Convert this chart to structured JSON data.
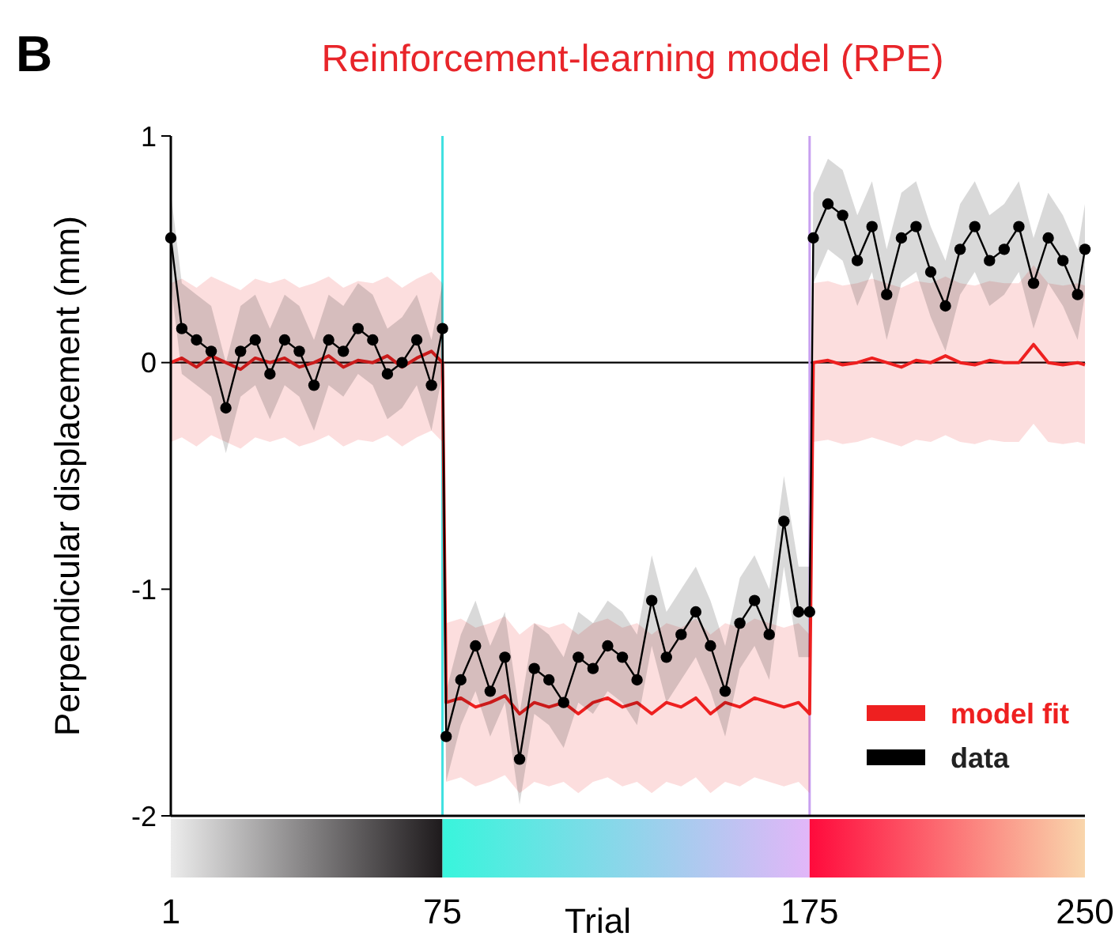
{
  "chart_data": {
    "type": "line",
    "title": "Reinforcement-learning model (RPE)",
    "xlabel": "Trial",
    "ylabel": "Perpendicular displacement (mm)",
    "annotations": [
      "B"
    ],
    "x": [
      1,
      4,
      8,
      12,
      16,
      20,
      24,
      28,
      32,
      36,
      40,
      44,
      48,
      52,
      56,
      60,
      64,
      68,
      72,
      75,
      76,
      80,
      84,
      88,
      92,
      96,
      100,
      104,
      108,
      112,
      116,
      120,
      124,
      128,
      132,
      136,
      140,
      144,
      148,
      152,
      156,
      160,
      164,
      168,
      172,
      175,
      176,
      180,
      184,
      188,
      192,
      196,
      200,
      204,
      208,
      212,
      216,
      220,
      224,
      228,
      232,
      236,
      240,
      244,
      248,
      250
    ],
    "xlim": [
      1,
      250
    ],
    "xticks": [
      1,
      75,
      175,
      250
    ],
    "ylim": [
      -2,
      1
    ],
    "yticks": [
      -2,
      -1,
      0,
      1
    ],
    "grid": false,
    "legend": "bottom right",
    "ref_lines": [
      {
        "axis": "y",
        "value": 0,
        "color": "#000000"
      },
      {
        "axis": "x",
        "value": 75,
        "color": "#40e0e0"
      },
      {
        "axis": "x",
        "value": 175,
        "color": "#c8a0f0"
      }
    ],
    "series": [
      {
        "name": "data",
        "color": "#000000",
        "marker": "circle",
        "values": [
          0.55,
          0.15,
          0.1,
          0.05,
          -0.2,
          0.05,
          0.1,
          -0.05,
          0.1,
          0.05,
          -0.1,
          0.1,
          0.05,
          0.15,
          0.1,
          -0.05,
          0.0,
          0.1,
          -0.1,
          0.15,
          -1.65,
          -1.4,
          -1.25,
          -1.45,
          -1.3,
          -1.75,
          -1.35,
          -1.4,
          -1.5,
          -1.3,
          -1.35,
          -1.25,
          -1.3,
          -1.4,
          -1.05,
          -1.3,
          -1.2,
          -1.1,
          -1.25,
          -1.45,
          -1.15,
          -1.05,
          -1.2,
          -0.7,
          -1.1,
          -1.1,
          0.55,
          0.7,
          0.65,
          0.45,
          0.6,
          0.3,
          0.55,
          0.6,
          0.4,
          0.25,
          0.5,
          0.6,
          0.45,
          0.5,
          0.6,
          0.35,
          0.55,
          0.45,
          0.3,
          0.5
        ],
        "lower": [
          0.35,
          -0.05,
          -0.1,
          -0.15,
          -0.4,
          -0.15,
          -0.1,
          -0.25,
          -0.1,
          -0.15,
          -0.3,
          -0.1,
          -0.15,
          -0.05,
          -0.1,
          -0.25,
          -0.2,
          -0.1,
          -0.3,
          -0.05,
          -1.85,
          -1.6,
          -1.45,
          -1.65,
          -1.5,
          -1.95,
          -1.55,
          -1.6,
          -1.7,
          -1.5,
          -1.55,
          -1.45,
          -1.5,
          -1.6,
          -1.25,
          -1.5,
          -1.4,
          -1.3,
          -1.45,
          -1.65,
          -1.35,
          -1.25,
          -1.4,
          -0.9,
          -1.3,
          -1.3,
          0.35,
          0.5,
          0.45,
          0.25,
          0.4,
          0.1,
          0.35,
          0.4,
          0.2,
          0.05,
          0.3,
          0.4,
          0.25,
          0.3,
          0.4,
          0.15,
          0.35,
          0.25,
          0.1,
          0.3
        ],
        "upper": [
          0.75,
          0.35,
          0.3,
          0.25,
          0,
          0.25,
          0.3,
          0.15,
          0.3,
          0.25,
          0.1,
          0.3,
          0.25,
          0.35,
          0.3,
          0.15,
          0.2,
          0.3,
          0.1,
          0.35,
          -1.45,
          -1.2,
          -1.05,
          -1.25,
          -1.1,
          -1.55,
          -1.15,
          -1.2,
          -1.3,
          -1.1,
          -1.15,
          -1.05,
          -1.1,
          -1.2,
          -0.85,
          -1.1,
          -1.0,
          -0.9,
          -1.05,
          -1.25,
          -0.95,
          -0.85,
          -1.0,
          -0.5,
          -0.9,
          -0.9,
          0.75,
          0.9,
          0.85,
          0.65,
          0.8,
          0.5,
          0.75,
          0.8,
          0.6,
          0.45,
          0.7,
          0.8,
          0.65,
          0.7,
          0.8,
          0.55,
          0.75,
          0.65,
          0.5,
          0.7
        ]
      },
      {
        "name": "model fit",
        "color": "#ee2020",
        "marker": "none",
        "values": [
          0.0,
          0.02,
          -0.02,
          0.03,
          0,
          -0.03,
          0.02,
          0,
          0.02,
          -0.02,
          0,
          0.03,
          -0.02,
          0.01,
          0,
          0.03,
          -0.02,
          0.02,
          0.05,
          0.0,
          -1.5,
          -1.48,
          -1.52,
          -1.5,
          -1.47,
          -1.55,
          -1.5,
          -1.52,
          -1.5,
          -1.55,
          -1.5,
          -1.48,
          -1.52,
          -1.5,
          -1.55,
          -1.5,
          -1.52,
          -1.48,
          -1.55,
          -1.5,
          -1.52,
          -1.48,
          -1.5,
          -1.52,
          -1.5,
          -1.55,
          0,
          0.01,
          -0.01,
          0,
          0.02,
          0,
          -0.02,
          0.01,
          0,
          0.03,
          0,
          -0.01,
          0.01,
          0,
          0,
          0.08,
          0,
          -0.01,
          0,
          -0.01
        ],
        "lower": [
          -0.35,
          -0.33,
          -0.37,
          -0.32,
          -0.35,
          -0.38,
          -0.33,
          -0.35,
          -0.33,
          -0.37,
          -0.35,
          -0.32,
          -0.37,
          -0.34,
          -0.35,
          -0.32,
          -0.37,
          -0.33,
          -0.3,
          -0.35,
          -1.85,
          -1.83,
          -1.87,
          -1.85,
          -1.82,
          -1.9,
          -1.85,
          -1.87,
          -1.85,
          -1.9,
          -1.85,
          -1.83,
          -1.87,
          -1.85,
          -1.9,
          -1.85,
          -1.87,
          -1.83,
          -1.9,
          -1.85,
          -1.87,
          -1.83,
          -1.85,
          -1.87,
          -1.85,
          -1.9,
          -0.35,
          -0.34,
          -0.36,
          -0.35,
          -0.33,
          -0.35,
          -0.37,
          -0.34,
          -0.35,
          -0.32,
          -0.35,
          -0.36,
          -0.34,
          -0.35,
          -0.35,
          -0.27,
          -0.35,
          -0.36,
          -0.35,
          -0.36
        ],
        "upper": [
          0.35,
          0.37,
          0.33,
          0.38,
          0.35,
          0.32,
          0.37,
          0.35,
          0.37,
          0.33,
          0.35,
          0.38,
          0.33,
          0.36,
          0.35,
          0.38,
          0.33,
          0.37,
          0.4,
          0.35,
          -1.15,
          -1.13,
          -1.17,
          -1.15,
          -1.12,
          -1.2,
          -1.15,
          -1.17,
          -1.15,
          -1.2,
          -1.15,
          -1.13,
          -1.17,
          -1.15,
          -1.2,
          -1.15,
          -1.17,
          -1.13,
          -1.2,
          -1.15,
          -1.17,
          -1.13,
          -1.15,
          -1.17,
          -1.15,
          -1.2,
          0.35,
          0.36,
          0.34,
          0.35,
          0.37,
          0.35,
          0.33,
          0.36,
          0.35,
          0.38,
          0.35,
          0.34,
          0.36,
          0.35,
          0.35,
          0.43,
          0.35,
          0.34,
          0.35,
          0.34
        ]
      }
    ]
  }
}
